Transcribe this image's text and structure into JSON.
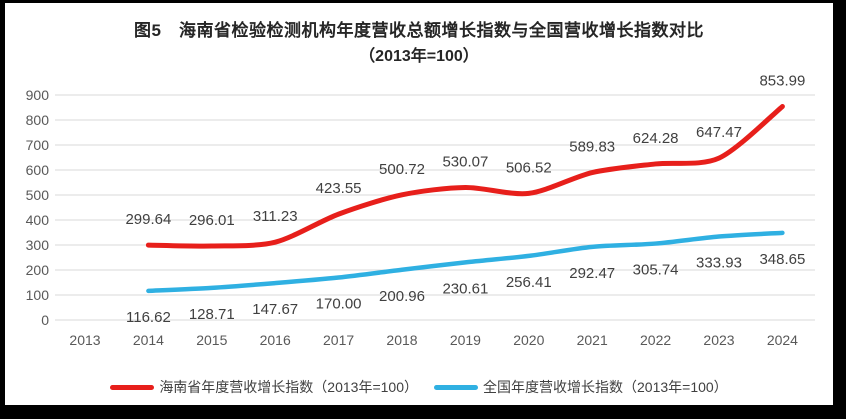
{
  "frame": {
    "border_color": "#000000",
    "panel_color": "#ffffff"
  },
  "chart_data": {
    "type": "line",
    "title": "图5　海南省检验检测机构年度营收总额增长指数与全国营收增长指数对比",
    "subtitle": "（2013年=100）",
    "categories": [
      "2013",
      "2014",
      "2015",
      "2016",
      "2017",
      "2018",
      "2019",
      "2020",
      "2021",
      "2022",
      "2023",
      "2024"
    ],
    "ylim": [
      0,
      900
    ],
    "ytick_step": 100,
    "ytick_labels": [
      "0",
      "100",
      "200",
      "300",
      "400",
      "500",
      "600",
      "700",
      "800",
      "900"
    ],
    "grid": "horizontal",
    "grid_color": "#d9d9d9",
    "axis_text_color": "#595959",
    "data_label_color": "#404040",
    "legend_position": "bottom",
    "value_decimals": 2,
    "series": [
      {
        "name": "海南省年度营收增长指数（2013年=100）",
        "color": "#e71f1b",
        "start_index": 1,
        "label_position": "above",
        "values": [
          299.64,
          296.01,
          311.23,
          423.55,
          500.72,
          530.07,
          506.52,
          589.83,
          624.28,
          647.47,
          853.99
        ]
      },
      {
        "name": "全国年度营收增长指数（2013年=100）",
        "color": "#2fb0e2",
        "start_index": 1,
        "label_position": "below",
        "values": [
          116.62,
          128.71,
          147.67,
          170.0,
          200.96,
          230.61,
          256.41,
          292.47,
          305.74,
          333.93,
          348.65
        ]
      }
    ]
  }
}
